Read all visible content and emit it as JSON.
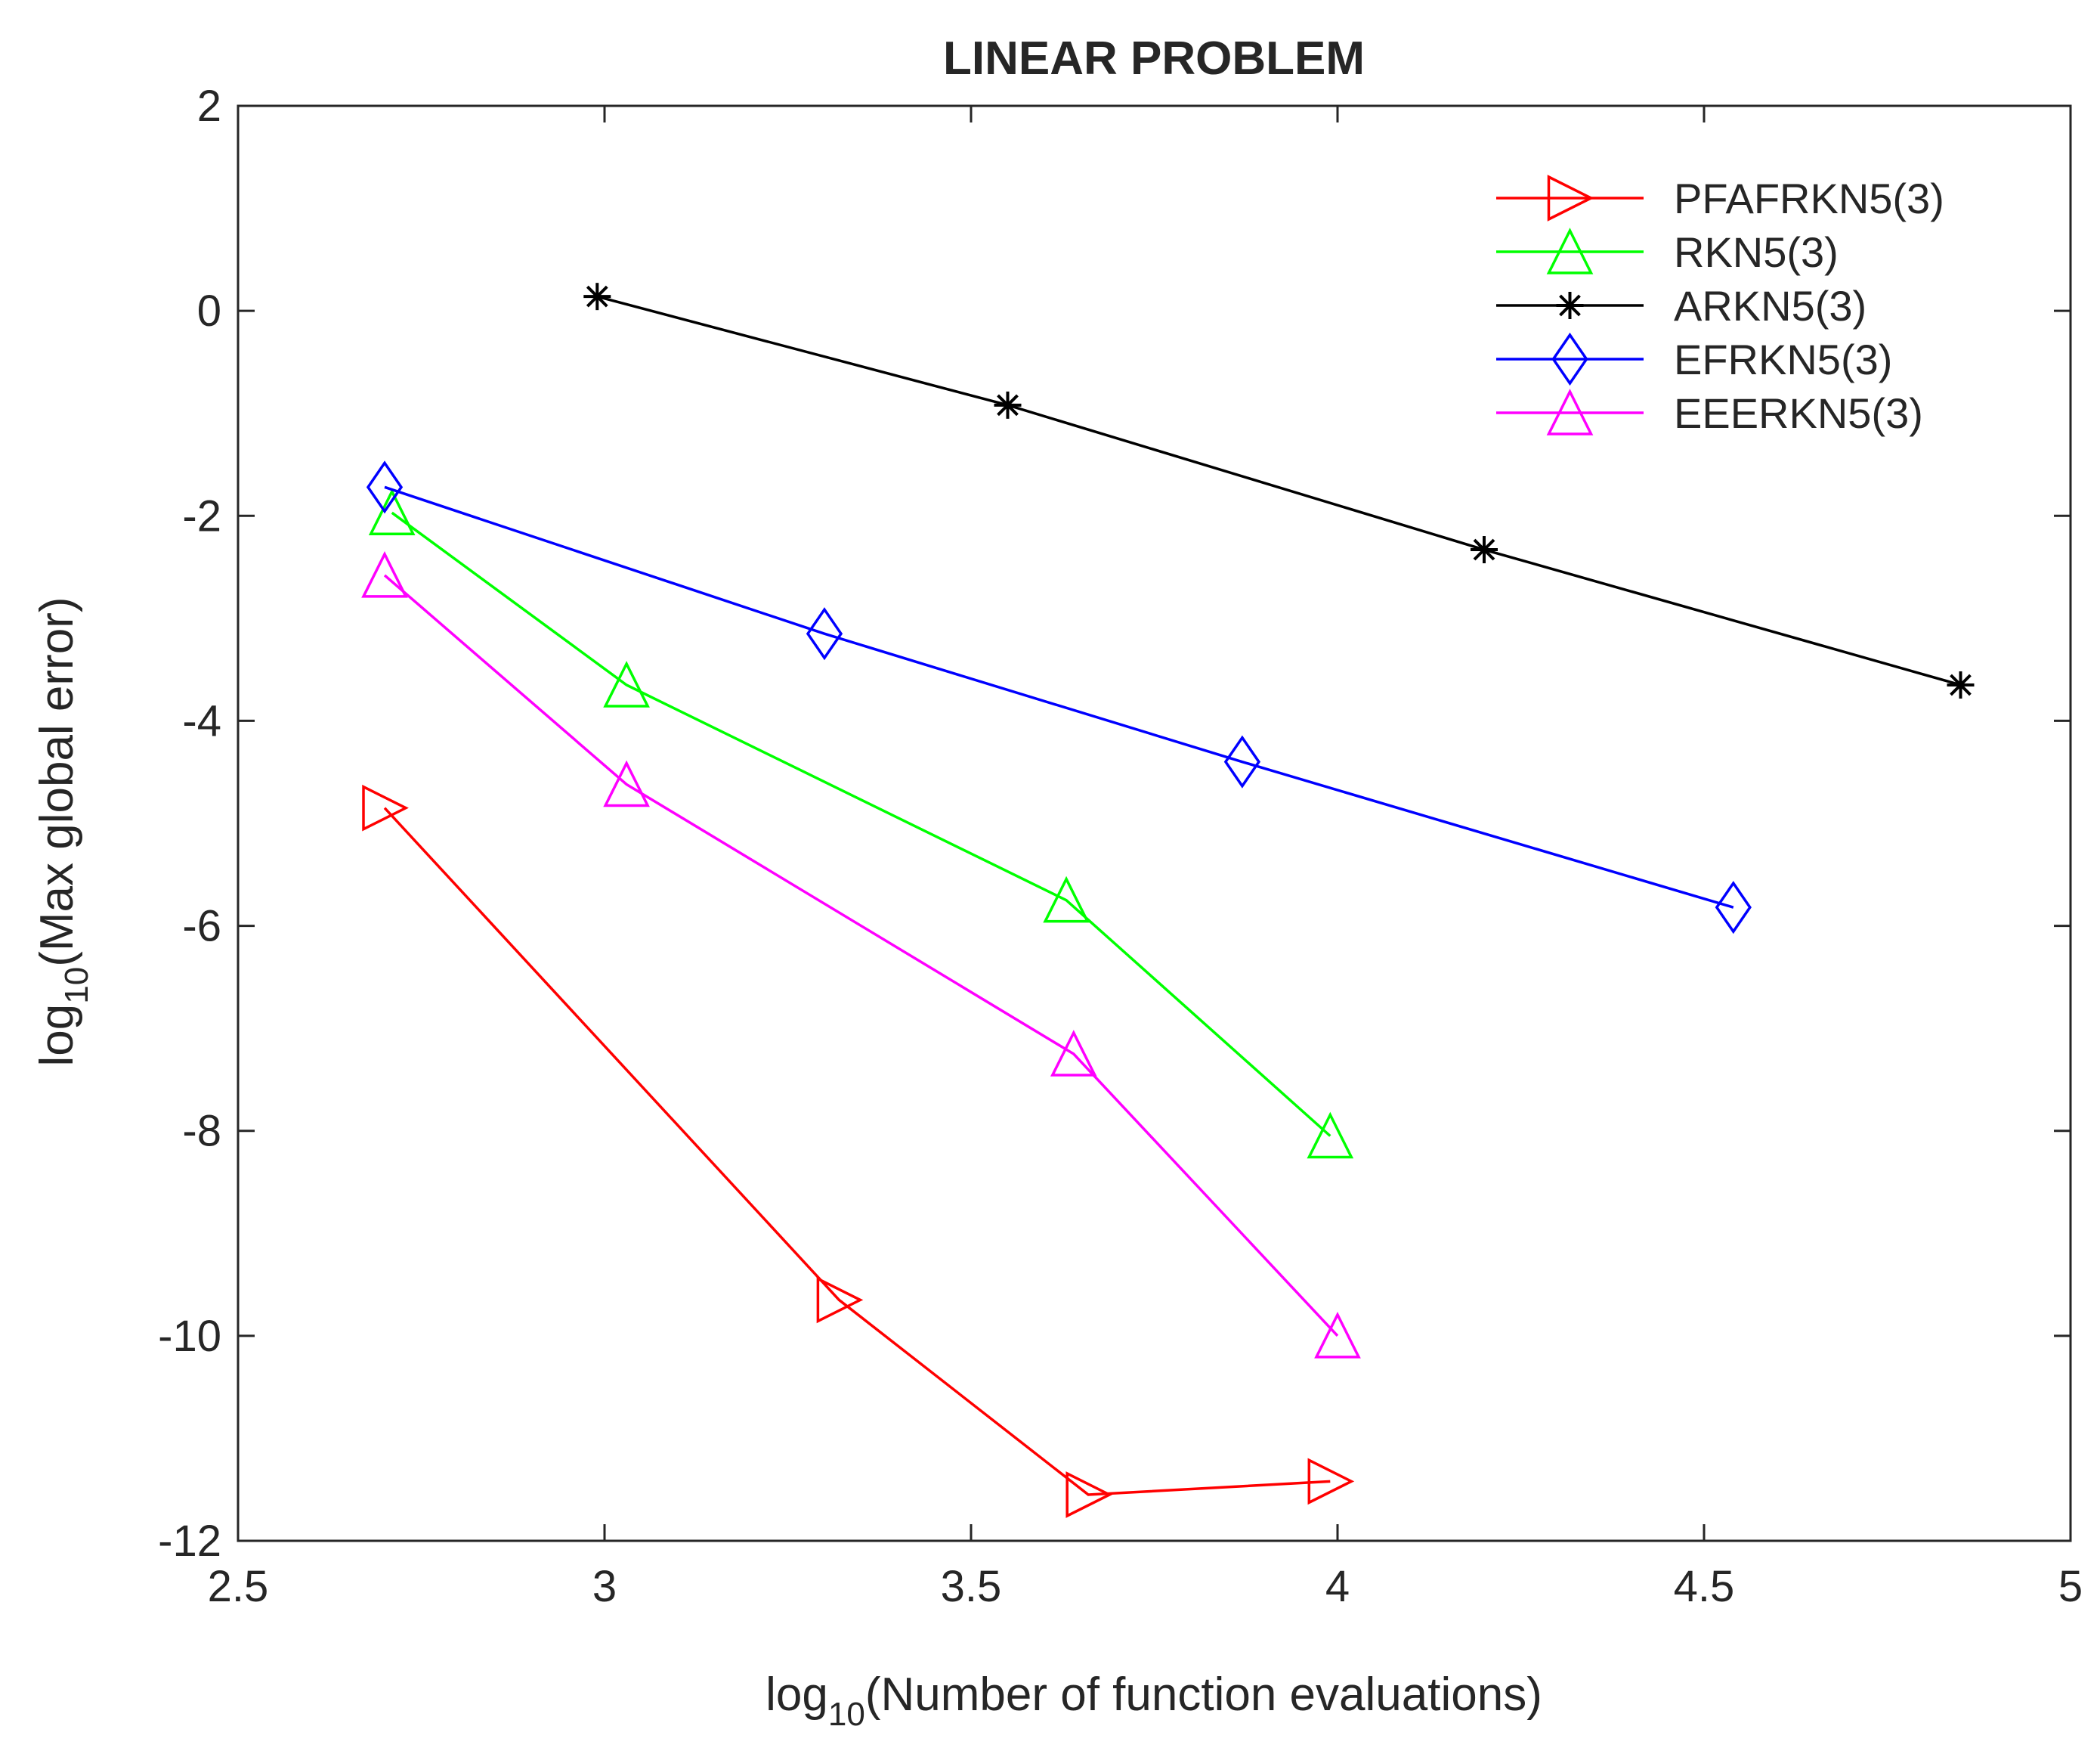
{
  "chart_data": {
    "type": "line",
    "title": "LINEAR PROBLEM",
    "xlabel": {
      "prefix": "log",
      "subscript": "10",
      "rest": "(Number of function evaluations)"
    },
    "ylabel": {
      "prefix": "log",
      "subscript": "10",
      "rest": "(Max global error)"
    },
    "xlim": [
      2.5,
      5
    ],
    "ylim": [
      -12,
      2
    ],
    "xticks": [
      2.5,
      3,
      3.5,
      4,
      4.5,
      5
    ],
    "xtick_labels": [
      "2.5",
      "3",
      "3.5",
      "4",
      "4.5",
      "5"
    ],
    "yticks": [
      -12,
      -10,
      -8,
      -6,
      -4,
      -2,
      0,
      2
    ],
    "ytick_labels": [
      "-12",
      "-10",
      "-8",
      "-6",
      "-4",
      "-2",
      "0",
      "2"
    ],
    "grid": false,
    "legend_position": "top-right",
    "series": [
      {
        "name": "PFAFRKN5(3)",
        "color": "#ff0000",
        "marker": "triangle-right",
        "x": [
          2.7,
          3.32,
          3.66,
          3.99
        ],
        "y": [
          -4.85,
          -9.65,
          -11.55,
          -11.42
        ]
      },
      {
        "name": "RKN5(3)",
        "color": "#00ff00",
        "marker": "triangle-up",
        "x": [
          2.71,
          3.03,
          3.63,
          3.99
        ],
        "y": [
          -1.97,
          -3.65,
          -5.75,
          -8.05
        ]
      },
      {
        "name": "ARKN5(3)",
        "color": "#000000",
        "marker": "asterisk",
        "x": [
          2.99,
          3.55,
          4.2,
          4.85
        ],
        "y": [
          0.14,
          -0.92,
          -2.33,
          -3.65
        ]
      },
      {
        "name": "EFRKN5(3)",
        "color": "#0000ff",
        "marker": "diamond",
        "x": [
          2.7,
          3.3,
          3.87,
          4.54
        ],
        "y": [
          -1.72,
          -3.15,
          -4.4,
          -5.82
        ]
      },
      {
        "name": "EEERKN5(3)",
        "color": "#ff00ff",
        "marker": "triangle-up",
        "x": [
          2.7,
          3.03,
          3.64,
          4.0
        ],
        "y": [
          -2.58,
          -4.62,
          -7.25,
          -10.0
        ]
      }
    ]
  }
}
